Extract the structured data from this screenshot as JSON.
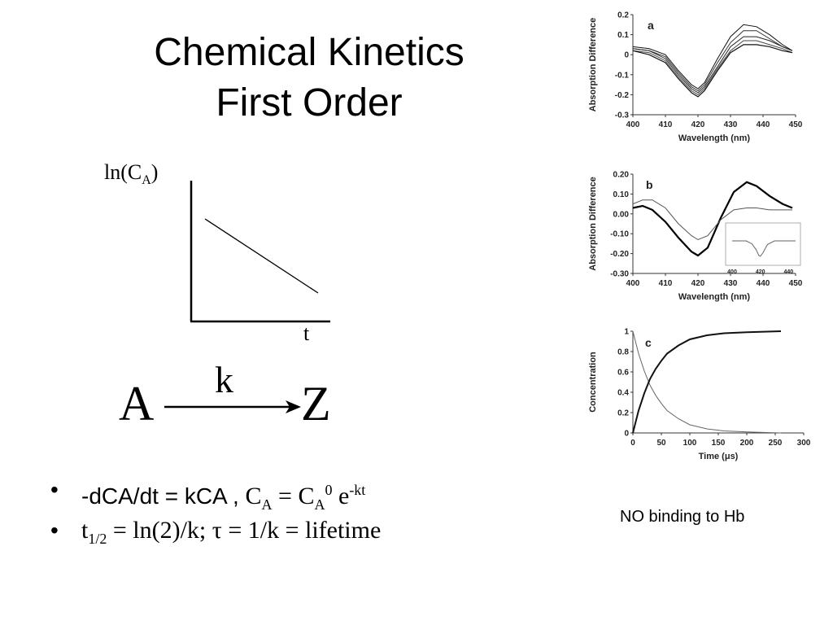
{
  "slide": {
    "title_line1": "Chemical Kinetics",
    "title_line2": "First Order",
    "ylabel_main": "ln(C",
    "ylabel_sub": "A",
    "ylabel_close": ")",
    "xlabel": "t",
    "reaction": {
      "reactant": "A",
      "product": "Z",
      "rate_constant": "k"
    },
    "bullets": [
      {
        "sans_part": "-dCA/dt = kCA ,",
        "c": "C",
        "sub1": "A",
        "eq": " = C",
        "sub2": "A",
        "sup0": "0",
        "e": " e",
        "supkt": "-kt"
      },
      {
        "t": "t",
        "sub": "1/2",
        "rest": " = ln(2)/k; τ = 1/k = lifetime"
      }
    ],
    "caption": "NO binding to Hb"
  },
  "chart_data": [
    {
      "type": "line",
      "panel_letter": "a",
      "xlabel": "Wavelength (nm)",
      "ylabel": "Absorption Difference",
      "xlim": [
        400,
        450
      ],
      "ylim": [
        -0.3,
        0.2
      ],
      "xticks": [
        "400",
        "410",
        "420",
        "430",
        "440",
        "450"
      ],
      "yticks": [
        "0.2",
        "0.1",
        "0",
        "-0.1",
        "-0.2",
        "-0.3"
      ],
      "series": [
        {
          "x": [
            400,
            405,
            410,
            414,
            418,
            420,
            422,
            426,
            430,
            434,
            438,
            442,
            446,
            449
          ],
          "y": [
            0.04,
            0.03,
            0.0,
            -0.08,
            -0.15,
            -0.17,
            -0.14,
            -0.02,
            0.09,
            0.15,
            0.14,
            0.1,
            0.05,
            0.02
          ]
        },
        {
          "x": [
            400,
            405,
            410,
            414,
            418,
            420,
            422,
            426,
            430,
            434,
            438,
            442,
            446,
            449
          ],
          "y": [
            0.03,
            0.02,
            -0.01,
            -0.09,
            -0.16,
            -0.18,
            -0.15,
            -0.04,
            0.06,
            0.12,
            0.12,
            0.08,
            0.04,
            0.02
          ]
        },
        {
          "x": [
            400,
            405,
            410,
            414,
            418,
            420,
            422,
            426,
            430,
            434,
            438,
            442,
            446,
            449
          ],
          "y": [
            0.03,
            0.02,
            -0.02,
            -0.1,
            -0.17,
            -0.19,
            -0.16,
            -0.06,
            0.04,
            0.09,
            0.09,
            0.07,
            0.04,
            0.02
          ]
        },
        {
          "x": [
            400,
            405,
            410,
            414,
            418,
            420,
            422,
            426,
            430,
            434,
            438,
            442,
            446,
            449
          ],
          "y": [
            0.02,
            0.01,
            -0.03,
            -0.11,
            -0.18,
            -0.2,
            -0.17,
            -0.07,
            0.02,
            0.07,
            0.07,
            0.05,
            0.03,
            0.01
          ]
        },
        {
          "x": [
            400,
            405,
            410,
            414,
            418,
            420,
            422,
            426,
            430,
            434,
            438,
            442,
            446,
            449
          ],
          "y": [
            0.02,
            0.0,
            -0.04,
            -0.12,
            -0.19,
            -0.21,
            -0.18,
            -0.08,
            0.01,
            0.05,
            0.05,
            0.04,
            0.02,
            0.01
          ]
        }
      ]
    },
    {
      "type": "line",
      "panel_letter": "b",
      "xlabel": "Wavelength (nm)",
      "ylabel": "Absorption Difference",
      "xlim": [
        400,
        450
      ],
      "ylim": [
        -0.3,
        0.2
      ],
      "xticks": [
        "400",
        "410",
        "420",
        "430",
        "440",
        "450"
      ],
      "yticks": [
        "0.20",
        "0.10",
        "0.00",
        "-0.10",
        "-0.20",
        "-0.30"
      ],
      "series": [
        {
          "x": [
            400,
            403,
            406,
            410,
            414,
            418,
            420,
            423,
            427,
            431,
            435,
            438,
            442,
            446,
            449
          ],
          "y": [
            0.03,
            0.04,
            0.02,
            -0.04,
            -0.12,
            -0.19,
            -0.21,
            -0.17,
            -0.02,
            0.11,
            0.16,
            0.14,
            0.09,
            0.05,
            0.03
          ]
        },
        {
          "x": [
            400,
            403,
            406,
            410,
            414,
            418,
            420,
            423,
            427,
            431,
            435,
            438,
            442,
            446,
            449
          ],
          "y": [
            0.05,
            0.07,
            0.07,
            0.03,
            -0.05,
            -0.11,
            -0.13,
            -0.11,
            -0.03,
            0.02,
            0.03,
            0.03,
            0.02,
            0.02,
            0.02
          ]
        }
      ],
      "inset": {
        "xticks": [
          "400",
          "420",
          "440"
        ],
        "xlim": [
          400,
          445
        ],
        "series": [
          {
            "x": [
              400,
              410,
              414,
              417,
              419,
              420,
              422,
              425,
              430,
              440,
              445
            ],
            "y": [
              0.0,
              0.0,
              -0.04,
              -0.12,
              -0.2,
              -0.21,
              -0.16,
              -0.05,
              0.0,
              0.0,
              0.0
            ]
          }
        ]
      }
    },
    {
      "type": "line",
      "panel_letter": "c",
      "xlabel": "Time (μs)",
      "ylabel": "Concentration",
      "xlim": [
        0,
        300
      ],
      "ylim": [
        0,
        1
      ],
      "xticks": [
        "0",
        "50",
        "100",
        "150",
        "200",
        "250",
        "300"
      ],
      "yticks": [
        "1",
        "0.8",
        "0.6",
        "0.4",
        "0.2",
        "0"
      ],
      "series": [
        {
          "x": [
            0,
            10,
            20,
            30,
            40,
            50,
            60,
            80,
            100,
            130,
            160,
            200,
            260
          ],
          "y": [
            1.0,
            0.78,
            0.61,
            0.47,
            0.37,
            0.29,
            0.22,
            0.14,
            0.08,
            0.04,
            0.02,
            0.01,
            0.0
          ]
        },
        {
          "x": [
            0,
            10,
            20,
            30,
            40,
            50,
            60,
            80,
            100,
            130,
            160,
            200,
            260
          ],
          "y": [
            0.0,
            0.22,
            0.39,
            0.53,
            0.63,
            0.71,
            0.78,
            0.86,
            0.92,
            0.96,
            0.98,
            0.99,
            1.0
          ]
        }
      ]
    }
  ]
}
